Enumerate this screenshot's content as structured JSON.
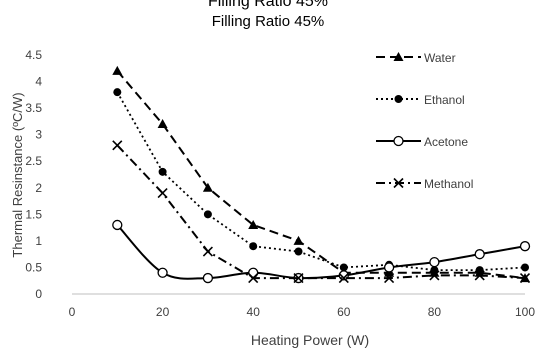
{
  "chart_data": {
    "type": "line",
    "title_cropped": "Filling Ratio 45%",
    "title": "Filling Ratio 45%",
    "xlabel": "Heating Power (W)",
    "ylabel": "Thermal Resinstance (ºC/W)",
    "xlim": [
      0,
      100
    ],
    "ylim": [
      0,
      4.5
    ],
    "x_ticks": [
      "0",
      "20",
      "40",
      "60",
      "80",
      "100"
    ],
    "y_ticks": [
      "0",
      "0.5",
      "1",
      "1.5",
      "2",
      "2.5",
      "3",
      "3.5",
      "4",
      "4.5"
    ],
    "grid": false,
    "legend_position": "right",
    "series": [
      {
        "name": "Water",
        "marker": "triangle",
        "line_style": "dashed",
        "smooth": false,
        "x": [
          10,
          20,
          30,
          40,
          50,
          60,
          70,
          80,
          90,
          100
        ],
        "y": [
          4.2,
          3.2,
          2.0,
          1.3,
          1.0,
          0.4,
          0.4,
          0.4,
          0.4,
          0.3
        ]
      },
      {
        "name": "Ethanol",
        "marker": "circle-filled",
        "line_style": "dotted",
        "smooth": false,
        "x": [
          10,
          20,
          30,
          40,
          50,
          60,
          70,
          80,
          90,
          100
        ],
        "y": [
          3.8,
          2.3,
          1.5,
          0.9,
          0.8,
          0.5,
          0.55,
          0.45,
          0.45,
          0.5
        ]
      },
      {
        "name": "Acetone",
        "marker": "circle-open",
        "line_style": "solid",
        "smooth": true,
        "x": [
          10,
          20,
          30,
          40,
          50,
          60,
          70,
          80,
          90,
          100
        ],
        "y": [
          1.3,
          0.4,
          0.3,
          0.4,
          0.3,
          0.35,
          0.5,
          0.6,
          0.75,
          0.9
        ]
      },
      {
        "name": "Methanol",
        "marker": "x",
        "line_style": "dash-dot",
        "smooth": false,
        "x": [
          10,
          20,
          30,
          40,
          50,
          60,
          70,
          80,
          90,
          100
        ],
        "y": [
          2.8,
          1.9,
          0.8,
          0.3,
          0.3,
          0.3,
          0.3,
          0.35,
          0.35,
          0.3
        ]
      }
    ],
    "colors": {
      "series": "#000000",
      "text": "#404040",
      "axis": "#bfbfbf"
    }
  }
}
